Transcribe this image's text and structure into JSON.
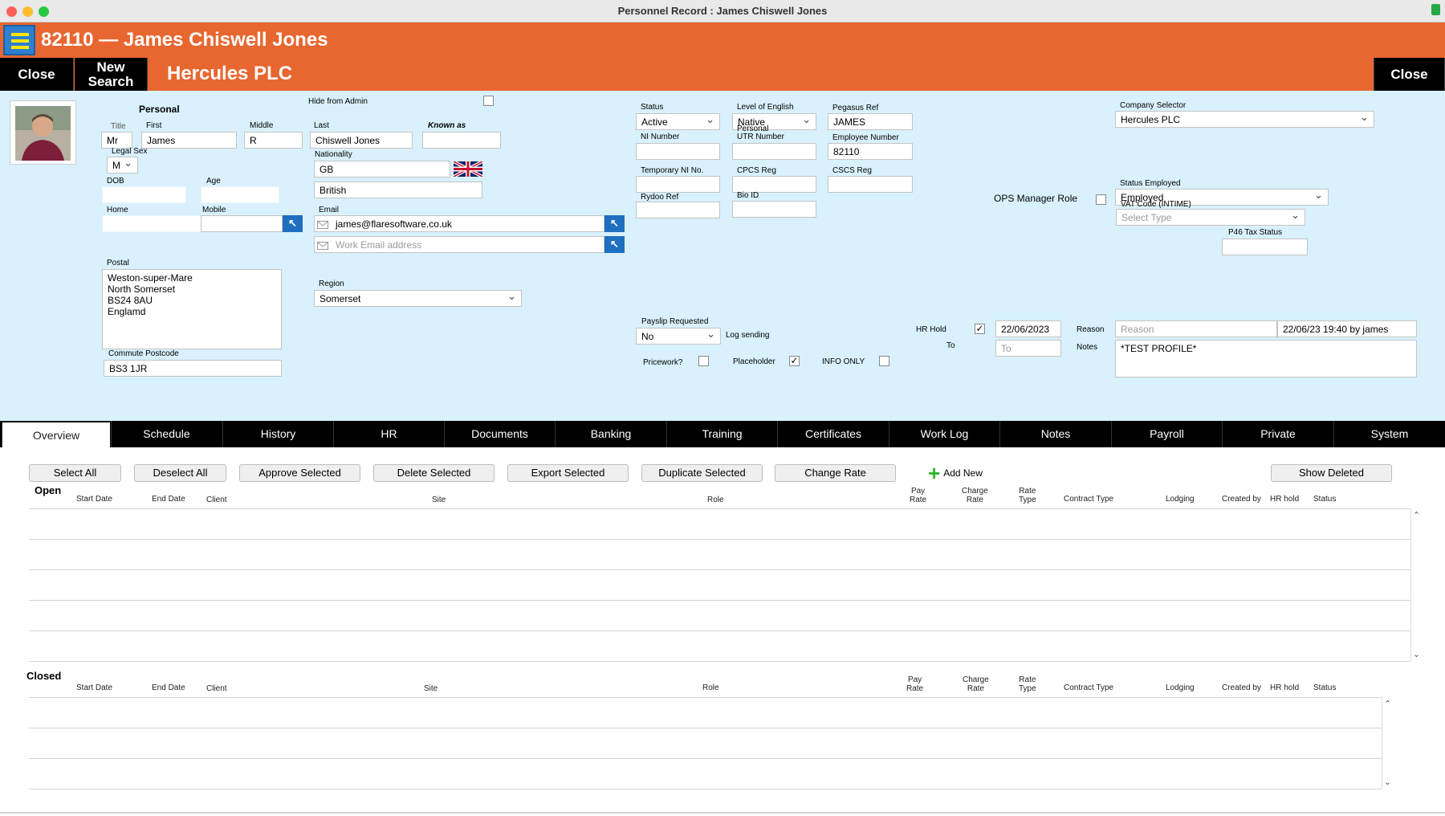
{
  "window": {
    "title": "Personnel Record : James Chiswell Jones"
  },
  "header": {
    "record_title": "82110 — James Chiswell Jones",
    "close_label": "Close",
    "new_search_label": "New Search",
    "company_name": "Hercules PLC",
    "close_right_label": "Close",
    "colors": {
      "header": "#e8662f",
      "form_bg": "#d9f1fc",
      "menu_button": "#2e7fd0"
    }
  },
  "personal": {
    "section_label": "Personal",
    "hide_from_admin_label": "Hide from Admin",
    "title_label": "Title",
    "title_value": "Mr",
    "first_label": "First",
    "first_value": "James",
    "middle_label": "Middle",
    "middle_value": "R",
    "last_label": "Last",
    "last_value": "Chiswell Jones",
    "known_as_label": "Known as",
    "known_as_value": "",
    "legal_sex_label": "Legal Sex",
    "legal_sex_value": "M",
    "nationality_label": "Nationality",
    "nationality_value": "GB",
    "nationality_text": "British",
    "dob_label": "DOB",
    "dob_value": "",
    "age_label": "Age",
    "age_value": "",
    "home_label": "Home",
    "home_value": "",
    "mobile_label": "Mobile",
    "mobile_value": "",
    "email_label": "Email",
    "email_value": "james@flaresoftware.co.uk",
    "work_email_placeholder": "Work Email address",
    "postal_label": "Postal",
    "postal_lines": [
      "Weston-super-Mare",
      "North Somerset",
      "BS24 8AU",
      "Englamd"
    ],
    "region_label": "Region",
    "region_value": "Somerset",
    "commute_label": "Commute Postcode",
    "commute_value": "BS3 1JR"
  },
  "employment": {
    "status_label": "Status",
    "status_value": "Active",
    "english_label": "Level of English",
    "english_value": "Native",
    "pegasus_label": "Pegasus Ref",
    "pegasus_value": "JAMES",
    "ni_label": "NI Number",
    "ni_value": "",
    "utr_label_1": "Personal",
    "utr_label_2": "UTR Number",
    "utr_value": "",
    "empnum_label": "Employee Number",
    "empnum_value": "82110",
    "temp_ni_label": "Temporary NI No.",
    "temp_ni_value": "",
    "cpcs_label": "CPCS Reg",
    "cpcs_value": "",
    "cscs_label": "CSCS Reg",
    "cscs_value": "",
    "rydoo_label": "Rydoo Ref",
    "rydoo_value": "",
    "bio_label": "Bio ID",
    "bio_value": "",
    "company_selector_label": "Company Selector",
    "company_selector_value": "Hercules PLC",
    "ops_manager_label": "OPS Manager Role",
    "status_employed_label": "Status Employed",
    "status_employed_value": "Employed",
    "vat_label": "VAT Code (INTIME)",
    "vat_placeholder": "Select Type",
    "p46_label": "P46 Tax Status",
    "p46_value": "",
    "payslip_label": "Payslip Requested",
    "payslip_value": "No",
    "log_sending_label": "Log sending",
    "pricework_label": "Pricework?",
    "pricework_checked": false,
    "placeholder_label": "Placeholder",
    "placeholder_checked": true,
    "info_only_label": "INFO ONLY",
    "info_only_checked": false,
    "hr_hold_label": "HR Hold",
    "hr_hold_checked": true,
    "hr_hold_date": "22/06/2023",
    "to_label": "To",
    "to_placeholder": "To",
    "reason_label": "Reason",
    "reason_placeholder": "Reason",
    "hr_hold_stamp": "22/06/23 19:40 by james",
    "notes_label": "Notes",
    "notes_value": "*TEST PROFILE*"
  },
  "tabs": [
    "Overview",
    "Schedule",
    "History",
    "HR",
    "Documents",
    "Banking",
    "Training",
    "Certificates",
    "Work Log",
    "Notes",
    "Payroll",
    "Private",
    "System"
  ],
  "actions": {
    "select_all": "Select All",
    "deselect_all": "Deselect All",
    "approve": "Approve Selected",
    "delete": "Delete Selected",
    "export": "Export Selected",
    "duplicate": "Duplicate Selected",
    "change_rate": "Change Rate",
    "add_new": "Add New",
    "show_deleted": "Show Deleted"
  },
  "open_section": {
    "label": "Open"
  },
  "closed_section": {
    "label": "Closed"
  },
  "columns": {
    "start": "Start Date",
    "end": "End Date",
    "client": "Client",
    "site": "Site",
    "role": "Role",
    "pay_1": "Pay",
    "pay_2": "Rate",
    "charge_1": "Charge",
    "charge_2": "Rate",
    "rtype_1": "Rate",
    "rtype_2": "Type",
    "contract": "Contract Type",
    "lodging": "Lodging",
    "created": "Created by",
    "hrhold": "HR hold",
    "status": "Status"
  }
}
